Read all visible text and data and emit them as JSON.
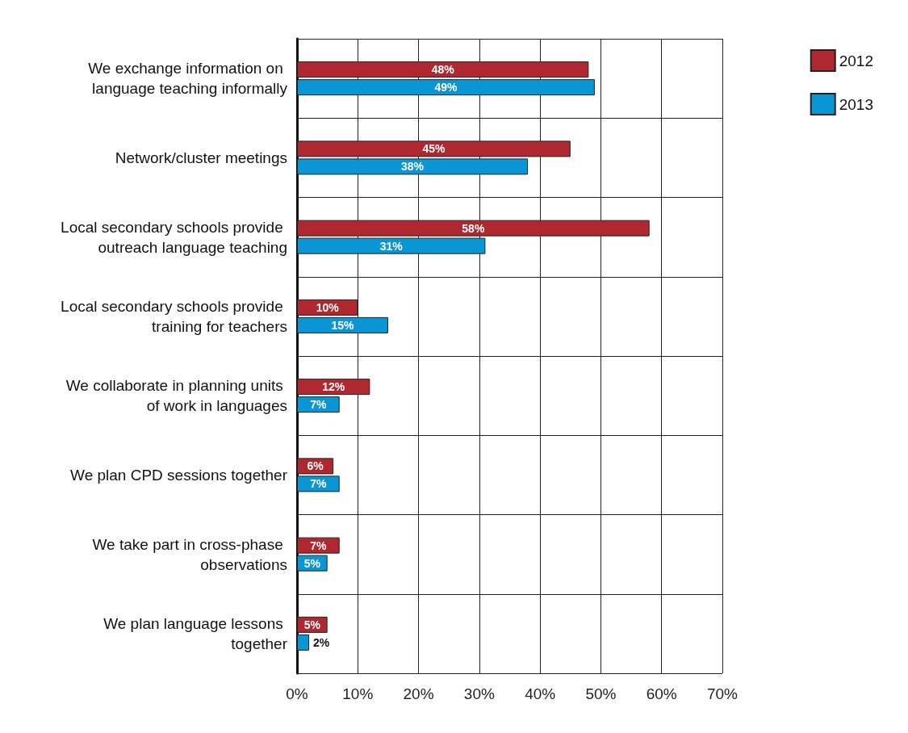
{
  "chart_data": {
    "type": "bar",
    "orientation": "horizontal",
    "categories": [
      "We exchange information on language teaching informally",
      "Network/cluster meetings",
      "Local secondary schools provide outreach language teaching",
      "Local secondary schools provide training for teachers",
      "We collaborate in planning units of work in languages",
      "We plan CPD sessions together",
      "We take part in cross-phase observations",
      "We plan language lessons together"
    ],
    "series": [
      {
        "name": "2012",
        "color": "#b0282f",
        "values": [
          48,
          45,
          58,
          10,
          12,
          6,
          7,
          5
        ],
        "value_labels": [
          "48%",
          "45%",
          "58%",
          "10%",
          "12%",
          "6%",
          "7%",
          "5%"
        ]
      },
      {
        "name": "2013",
        "color": "#0a96d4",
        "values": [
          49,
          38,
          31,
          15,
          7,
          7,
          5,
          2
        ],
        "value_labels": [
          "49%",
          "38%",
          "31%",
          "15%",
          "7%",
          "7%",
          "5%",
          "2%"
        ]
      }
    ],
    "xlim": [
      0,
      70
    ],
    "xticks": [
      {
        "value": 0,
        "label": "0%"
      },
      {
        "value": 10,
        "label": "10%"
      },
      {
        "value": 20,
        "label": "20%"
      },
      {
        "value": 30,
        "label": "30%"
      },
      {
        "value": 40,
        "label": "40%"
      },
      {
        "value": 50,
        "label": "50%"
      },
      {
        "value": 60,
        "label": "60%"
      },
      {
        "value": 70,
        "label": "70%"
      }
    ],
    "grid": true,
    "legend": "top right"
  }
}
